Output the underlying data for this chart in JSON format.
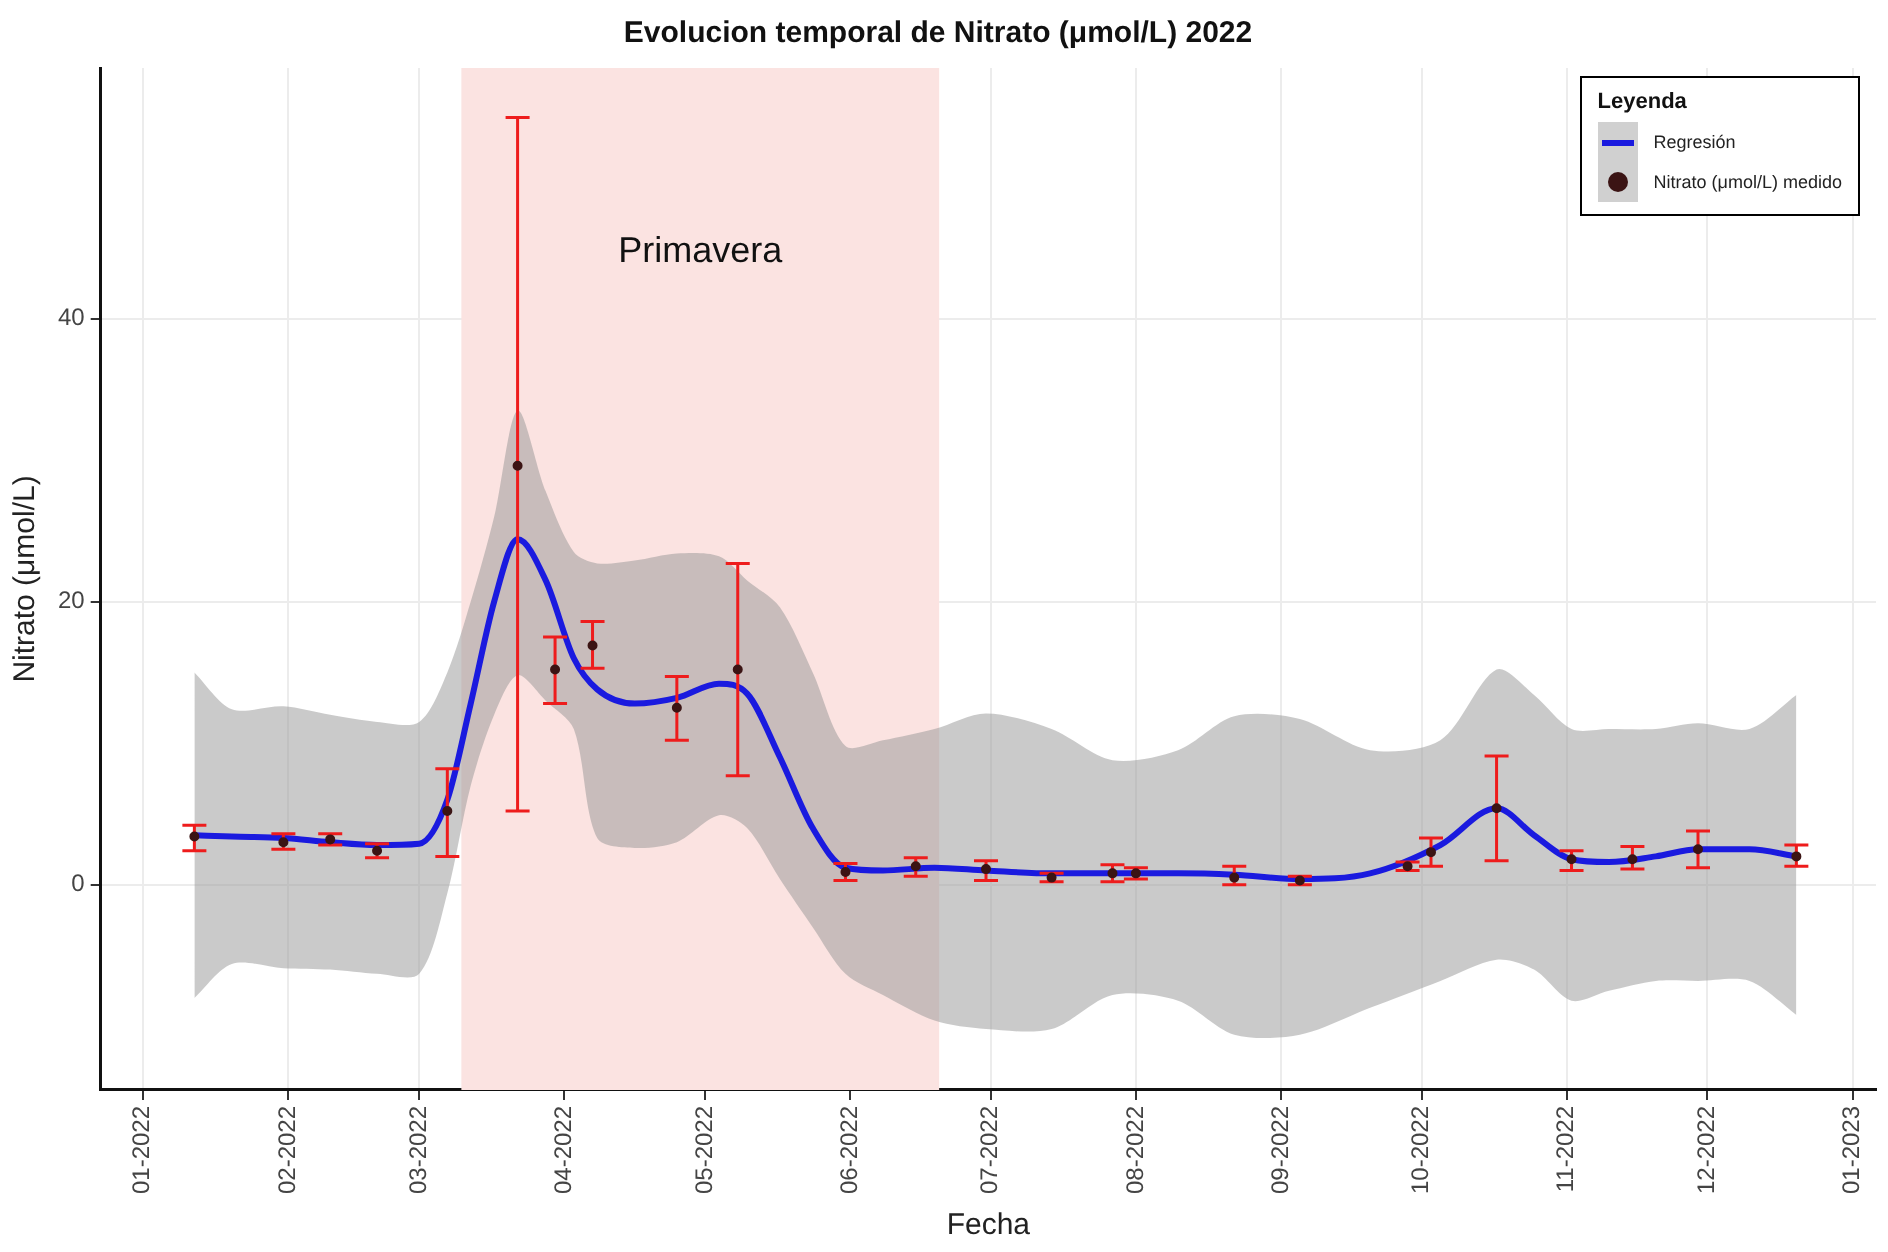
{
  "chart_data": {
    "type": "line",
    "title": "Evolucion temporal de Nitrato (μmol/L) 2022",
    "xlabel": "Fecha",
    "ylabel": "Nitrato (μmol/L)",
    "legend_title": "Leyenda",
    "legend": "top right",
    "grid": true,
    "xlim": [
      "2021-12-23",
      "2023-01-06"
    ],
    "xticks": [
      {
        "value": "2022-01-01",
        "label": "01-2022"
      },
      {
        "value": "2022-02-01",
        "label": "02-2022"
      },
      {
        "value": "2022-03-01",
        "label": "03-2022"
      },
      {
        "value": "2022-04-01",
        "label": "04-2022"
      },
      {
        "value": "2022-05-01",
        "label": "05-2022"
      },
      {
        "value": "2022-06-01",
        "label": "06-2022"
      },
      {
        "value": "2022-07-01",
        "label": "07-2022"
      },
      {
        "value": "2022-08-01",
        "label": "08-2022"
      },
      {
        "value": "2022-09-01",
        "label": "09-2022"
      },
      {
        "value": "2022-10-01",
        "label": "10-2022"
      },
      {
        "value": "2022-11-01",
        "label": "11-2022"
      },
      {
        "value": "2022-12-01",
        "label": "12-2022"
      },
      {
        "value": "2023-01-01",
        "label": "01-2023"
      }
    ],
    "ylim": [
      -14.5,
      57.7
    ],
    "yticks": [
      0,
      20,
      40
    ],
    "bands": [
      {
        "axis": "x",
        "from": "2022-03-10",
        "to": "2022-06-20",
        "label": "Primavera",
        "color": "#fbe3e1"
      }
    ],
    "series": [
      {
        "name": "Regresión",
        "type": "line",
        "color": "#1a1adf",
        "line_style": "solid",
        "marker": "none",
        "x": [
          "2022-01-12",
          "2022-01-20",
          "2022-01-31",
          "2022-02-10",
          "2022-02-20",
          "2022-03-01",
          "2022-03-07",
          "2022-03-12",
          "2022-03-17",
          "2022-03-22",
          "2022-03-28",
          "2022-04-03",
          "2022-04-08",
          "2022-04-16",
          "2022-04-25",
          "2022-05-04",
          "2022-05-10",
          "2022-05-17",
          "2022-05-24",
          "2022-05-31",
          "2022-06-08",
          "2022-06-19",
          "2022-06-30",
          "2022-07-14",
          "2022-07-27",
          "2022-08-10",
          "2022-08-22",
          "2022-09-05",
          "2022-09-20",
          "2022-10-05",
          "2022-10-17",
          "2022-10-25",
          "2022-11-02",
          "2022-11-10",
          "2022-11-20",
          "2022-11-29",
          "2022-12-10",
          "2022-12-20"
        ],
        "values": [
          3.5,
          3.4,
          3.3,
          3.0,
          2.8,
          2.9,
          6.0,
          12.8,
          20,
          24.4,
          21.5,
          16,
          13.8,
          12.8,
          13.2,
          14.2,
          13.5,
          9,
          4,
          1.2,
          1.0,
          1.2,
          1.0,
          0.8,
          0.8,
          0.8,
          0.7,
          0.4,
          0.8,
          2.8,
          5.4,
          3.5,
          1.8,
          1.6,
          2.0,
          2.5,
          2.5,
          2.0
        ],
        "upper": [
          15,
          12.4,
          12.6,
          12.0,
          11.5,
          11.5,
          15,
          20,
          26,
          33.5,
          27.8,
          23.5,
          22.7,
          22.9,
          23.4,
          23.2,
          21.5,
          19.6,
          15,
          9.8,
          10.2,
          11,
          12.1,
          11,
          8.8,
          9.5,
          11.9,
          11.7,
          9.5,
          10.2,
          15.2,
          13.4,
          11,
          11,
          11,
          11.4,
          11,
          13.4
        ],
        "lower": [
          -8,
          -5.6,
          -5.9,
          -6.0,
          -6.3,
          -6.3,
          -0.6,
          7,
          12,
          14.8,
          13,
          11,
          3.3,
          2.6,
          3,
          4.9,
          4.0,
          0.4,
          -3,
          -6.3,
          -7.8,
          -9.6,
          -10.2,
          -10.2,
          -7.8,
          -8.2,
          -10.6,
          -10.6,
          -8.7,
          -6.8,
          -5.3,
          -6,
          -8.2,
          -7.5,
          -6.8,
          -6.8,
          -6.8,
          -9.2
        ]
      },
      {
        "name": "Nitrato (μmol/L) medido",
        "type": "scatter",
        "color": "#3b1414",
        "marker": "circle",
        "x": [
          "2022-01-12",
          "2022-01-31",
          "2022-02-10",
          "2022-02-20",
          "2022-03-07",
          "2022-03-22",
          "2022-03-30",
          "2022-04-07",
          "2022-04-25",
          "2022-05-08",
          "2022-05-31",
          "2022-06-15",
          "2022-06-30",
          "2022-07-14",
          "2022-07-27",
          "2022-08-01",
          "2022-08-22",
          "2022-09-05",
          "2022-09-28",
          "2022-10-03",
          "2022-10-17",
          "2022-11-02",
          "2022-11-15",
          "2022-11-29",
          "2022-12-20"
        ],
        "values": [
          3.4,
          3.0,
          3.2,
          2.4,
          5.2,
          29.6,
          15.2,
          16.9,
          12.5,
          15.2,
          0.9,
          1.3,
          1.1,
          0.5,
          0.8,
          0.8,
          0.5,
          0.3,
          1.3,
          2.3,
          5.4,
          1.8,
          1.8,
          2.5,
          2.0
        ],
        "errors": [
          [
            2.4,
            4.2
          ],
          [
            2.5,
            3.6
          ],
          [
            2.8,
            3.6
          ],
          [
            1.9,
            2.9
          ],
          [
            2.0,
            8.2
          ],
          [
            5.2,
            54.2
          ],
          [
            12.8,
            17.5
          ],
          [
            15.3,
            18.6
          ],
          [
            10.2,
            14.7
          ],
          [
            7.7,
            22.7
          ],
          [
            0.3,
            1.5
          ],
          [
            0.6,
            1.9
          ],
          [
            0.3,
            1.7
          ],
          [
            0.2,
            0.8
          ],
          [
            0.2,
            1.4
          ],
          [
            0.4,
            1.2
          ],
          [
            0,
            1.3
          ],
          [
            0,
            0.6
          ],
          [
            1.0,
            1.6
          ],
          [
            1.3,
            3.3
          ],
          [
            1.7,
            9.1
          ],
          [
            1.0,
            2.4
          ],
          [
            1.1,
            2.7
          ],
          [
            1.2,
            3.8
          ],
          [
            1.3,
            2.8
          ]
        ]
      }
    ]
  }
}
